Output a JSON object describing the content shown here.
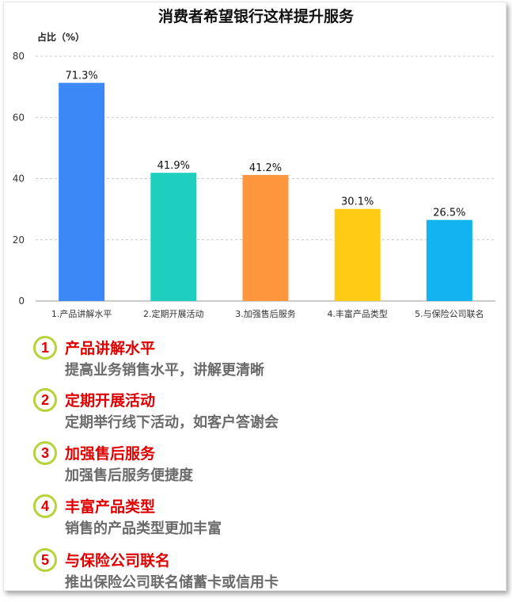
{
  "chart_data": {
    "type": "bar",
    "title": "消费者希望银行这样提升服务",
    "ylabel": "占比（%）",
    "xlabel": "",
    "ylim": [
      0,
      80
    ],
    "yticks": [
      0,
      20,
      40,
      60,
      80
    ],
    "grid": true,
    "categories": [
      "1.产品讲解水平",
      "2.定期开展活动",
      "3.加强售后服务",
      "4.丰富产品类型",
      "5.与保险公司联名"
    ],
    "values": [
      71.3,
      41.9,
      41.2,
      30.1,
      26.5
    ],
    "value_labels": [
      "71.3%",
      "41.9%",
      "41.2%",
      "30.1%",
      "26.5%"
    ],
    "colors": [
      "#3d88f7",
      "#1ecfc0",
      "#fd963c",
      "#ffcb14",
      "#13b3f0"
    ]
  },
  "tips": [
    {
      "num": "1",
      "title": "产品讲解水平",
      "desc": "提高业务销售水平，讲解更清晰"
    },
    {
      "num": "2",
      "title": "定期开展活动",
      "desc": "定期举行线下活动，如客户答谢会"
    },
    {
      "num": "3",
      "title": "加强售后服务",
      "desc": "加强售后服务便捷度"
    },
    {
      "num": "4",
      "title": "丰富产品类型",
      "desc": "销售的产品类型更加丰富"
    },
    {
      "num": "5",
      "title": "与保险公司联名",
      "desc": "推出保险公司联名储蓄卡或信用卡"
    }
  ]
}
